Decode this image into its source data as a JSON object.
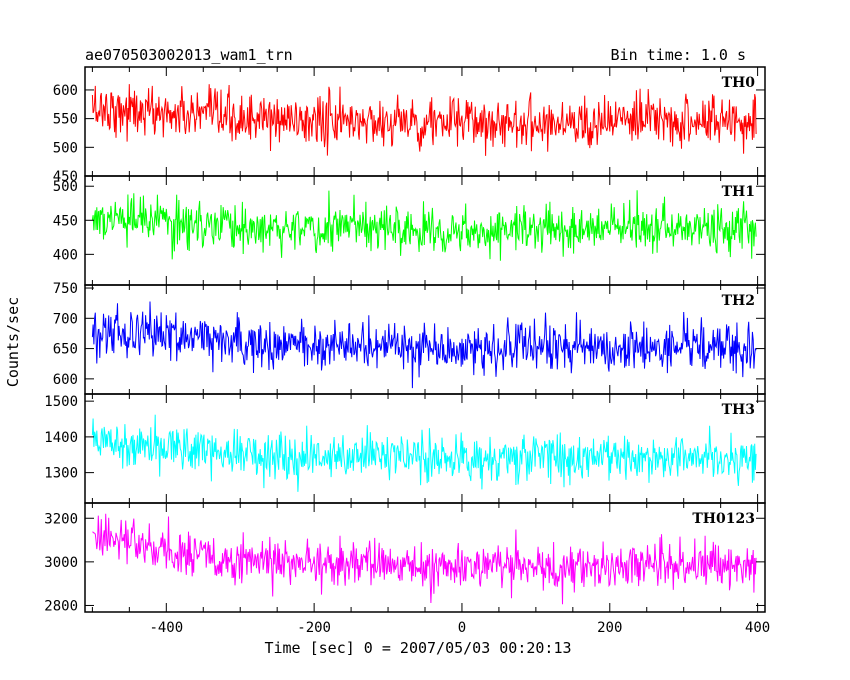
{
  "chart_data": {
    "type": "line",
    "title": "ae070503002013_wam1_trn",
    "subtitle": "Bin time: 1.0 s",
    "xlabel": "Time [sec] 0 = 2007/05/03 00:20:13",
    "ylabel": "Counts/sec",
    "xlim": [
      -510,
      410
    ],
    "xticks": [
      -400,
      -200,
      0,
      200,
      400
    ],
    "grid": false,
    "panels": [
      {
        "name": "TH0",
        "color": "#ff0000",
        "ylim": [
          450,
          640
        ],
        "yticks": [
          450,
          500,
          550,
          600
        ],
        "mean": 548,
        "noise": 22,
        "trend": [
          [
            -500,
            570
          ],
          [
            -300,
            548
          ],
          [
            0,
            543
          ],
          [
            400,
            547
          ]
        ]
      },
      {
        "name": "TH1",
        "color": "#00ff00",
        "ylim": [
          355,
          515
        ],
        "yticks": [
          400,
          450,
          500
        ],
        "mean": 440,
        "noise": 17,
        "trend": [
          [
            -500,
            452
          ],
          [
            -300,
            440
          ],
          [
            0,
            437
          ],
          [
            400,
            438
          ]
        ]
      },
      {
        "name": "TH2",
        "color": "#0000ff",
        "ylim": [
          575,
          755
        ],
        "yticks": [
          600,
          650,
          700,
          750
        ],
        "mean": 655,
        "noise": 20,
        "trend": [
          [
            -500,
            683
          ],
          [
            -300,
            660
          ],
          [
            0,
            650
          ],
          [
            400,
            652
          ]
        ]
      },
      {
        "name": "TH3",
        "color": "#00ffff",
        "ylim": [
          1215,
          1520
        ],
        "yticks": [
          1300,
          1400,
          1500
        ],
        "mean": 1350,
        "noise": 33,
        "trend": [
          [
            -500,
            1395
          ],
          [
            -300,
            1355
          ],
          [
            0,
            1340
          ],
          [
            400,
            1345
          ]
        ]
      },
      {
        "name": "TH0123",
        "color": "#ff00ff",
        "ylim": [
          2770,
          3270
        ],
        "yticks": [
          2800,
          3000,
          3200
        ],
        "mean": 2990,
        "noise": 52,
        "trend": [
          [
            -500,
            3120
          ],
          [
            -300,
            3000
          ],
          [
            0,
            2975
          ],
          [
            200,
            2985
          ],
          [
            400,
            2990
          ]
        ]
      }
    ]
  }
}
